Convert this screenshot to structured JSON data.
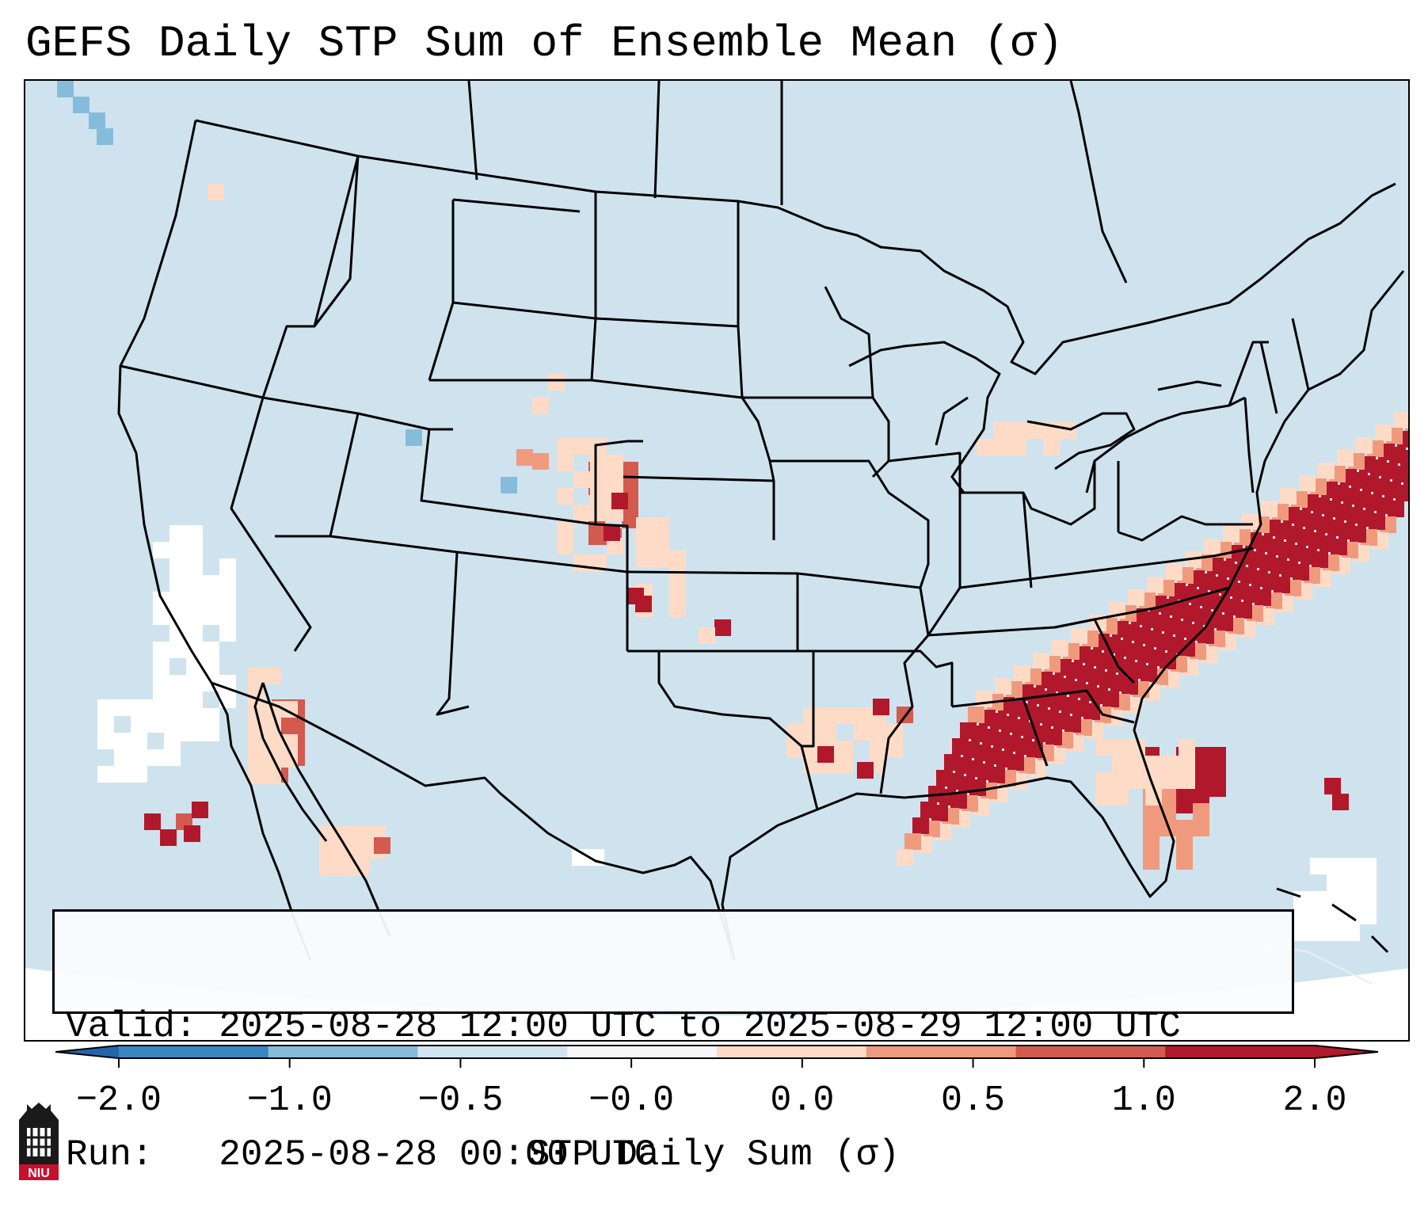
{
  "title": "GEFS Daily STP Sum of Ensemble Mean (σ)",
  "info": {
    "valid_line": "Valid: 2025-08-28 12:00 UTC to 2025-08-29 12:00 UTC",
    "run_line": "Run:   2025-08-28 00:00 UTC"
  },
  "colorbar": {
    "label": "STP Daily Sum (σ)",
    "ticks": [
      "−2.0",
      "−1.0",
      "−0.5",
      "−0.0",
      "0.0",
      "0.5",
      "1.0",
      "2.0"
    ],
    "colors": [
      "#3a86c0",
      "#85bcdc",
      "#d1e5f0",
      "#f7f7f7",
      "#fddbc7",
      "#f09a7d",
      "#d25a4e",
      "#b2182b"
    ],
    "extend_low_color": "#2166ac",
    "extend_high_color": "#b2182b"
  },
  "logo": {
    "text": "NIU",
    "icon": "niu-logo-icon"
  },
  "map": {
    "background_color": "#cfe3ee",
    "outside_color": "#ffffff",
    "regions": [
      {
        "name": "southeast-atlantic-high-region",
        "level": 3
      },
      {
        "name": "florida-region",
        "level": 3
      },
      {
        "name": "colorado-kansas-region",
        "level": 3
      },
      {
        "name": "louisiana-region",
        "level": 2
      },
      {
        "name": "baja-region",
        "level": 3
      },
      {
        "name": "pacific-low-region",
        "level": 0
      }
    ]
  }
}
